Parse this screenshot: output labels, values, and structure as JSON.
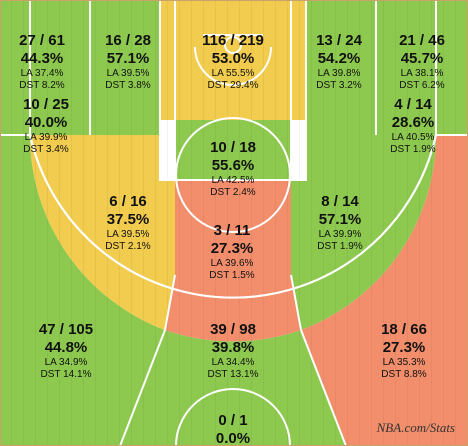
{
  "colors": {
    "green": "#8dc94f",
    "yellow": "#f1cc4e",
    "red": "#f28e6b",
    "line": "#ffffff",
    "frame": "#c9a26a"
  },
  "watermark": "NBA.com/Stats",
  "chart_data": {
    "type": "table",
    "title": "",
    "fields": [
      "made",
      "attempts",
      "fg_pct",
      "league_avg",
      "distribution"
    ],
    "zones": [
      {
        "zone": "left-corner-3",
        "made_attempts": "27 / 61",
        "made": 27,
        "attempts": 61,
        "pct": "44.3%",
        "la": "LA 37.4%",
        "dst": "DST 8.2%",
        "tier": "green"
      },
      {
        "zone": "left-baseline-mid",
        "made_attempts": "16 / 28",
        "made": 16,
        "attempts": 28,
        "pct": "57.1%",
        "la": "LA 39.5%",
        "dst": "DST 3.8%",
        "tier": "green"
      },
      {
        "zone": "paint-restricted-area",
        "made_attempts": "116 / 219",
        "made": 116,
        "attempts": 219,
        "pct": "53.0%",
        "la": "LA 55.5%",
        "dst": "DST 29.4%",
        "tier": "yellow"
      },
      {
        "zone": "right-baseline-mid",
        "made_attempts": "13 / 24",
        "made": 13,
        "attempts": 24,
        "pct": "54.2%",
        "la": "LA 39.8%",
        "dst": "DST 3.2%",
        "tier": "green"
      },
      {
        "zone": "right-corner-3",
        "made_attempts": "21 / 46",
        "made": 21,
        "attempts": 46,
        "pct": "45.7%",
        "la": "LA 38.1%",
        "dst": "DST 6.2%",
        "tier": "green"
      },
      {
        "zone": "left-wing-mid",
        "made_attempts": "10 / 25",
        "made": 10,
        "attempts": 25,
        "pct": "40.0%",
        "la": "LA 39.9%",
        "dst": "DST 3.4%",
        "tier": "yellow"
      },
      {
        "zone": "right-wing-mid",
        "made_attempts": "4 / 14",
        "made": 4,
        "attempts": 14,
        "pct": "28.6%",
        "la": "LA 40.5%",
        "dst": "DST 1.9%",
        "tier": "red"
      },
      {
        "zone": "paint-non-ra",
        "made_attempts": "10 / 18",
        "made": 10,
        "attempts": 18,
        "pct": "55.6%",
        "la": "LA 42.5%",
        "dst": "DST 2.4%",
        "tier": "green"
      },
      {
        "zone": "left-elbow-mid",
        "made_attempts": "6 / 16",
        "made": 6,
        "attempts": 16,
        "pct": "37.5%",
        "la": "LA 39.5%",
        "dst": "DST 2.1%",
        "tier": "yellow"
      },
      {
        "zone": "right-elbow-mid",
        "made_attempts": "8 / 14",
        "made": 8,
        "attempts": 14,
        "pct": "57.1%",
        "la": "LA 39.9%",
        "dst": "DST 1.9%",
        "tier": "green"
      },
      {
        "zone": "top-key-mid",
        "made_attempts": "3 / 11",
        "made": 3,
        "attempts": 11,
        "pct": "27.3%",
        "la": "LA 39.6%",
        "dst": "DST 1.5%",
        "tier": "red"
      },
      {
        "zone": "left-wing-3",
        "made_attempts": "47 / 105",
        "made": 47,
        "attempts": 105,
        "pct": "44.8%",
        "la": "LA 34.9%",
        "dst": "DST 14.1%",
        "tier": "green"
      },
      {
        "zone": "top-key-3",
        "made_attempts": "39 / 98",
        "made": 39,
        "attempts": 98,
        "pct": "39.8%",
        "la": "LA 34.4%",
        "dst": "DST 13.1%",
        "tier": "green"
      },
      {
        "zone": "right-wing-3",
        "made_attempts": "18 / 66",
        "made": 18,
        "attempts": 66,
        "pct": "27.3%",
        "la": "LA 35.3%",
        "dst": "DST 8.8%",
        "tier": "red"
      },
      {
        "zone": "backcourt",
        "made_attempts": "0 / 1",
        "made": 0,
        "attempts": 1,
        "pct": "0.0%",
        "la": "",
        "dst": "",
        "tier": "green"
      }
    ]
  }
}
